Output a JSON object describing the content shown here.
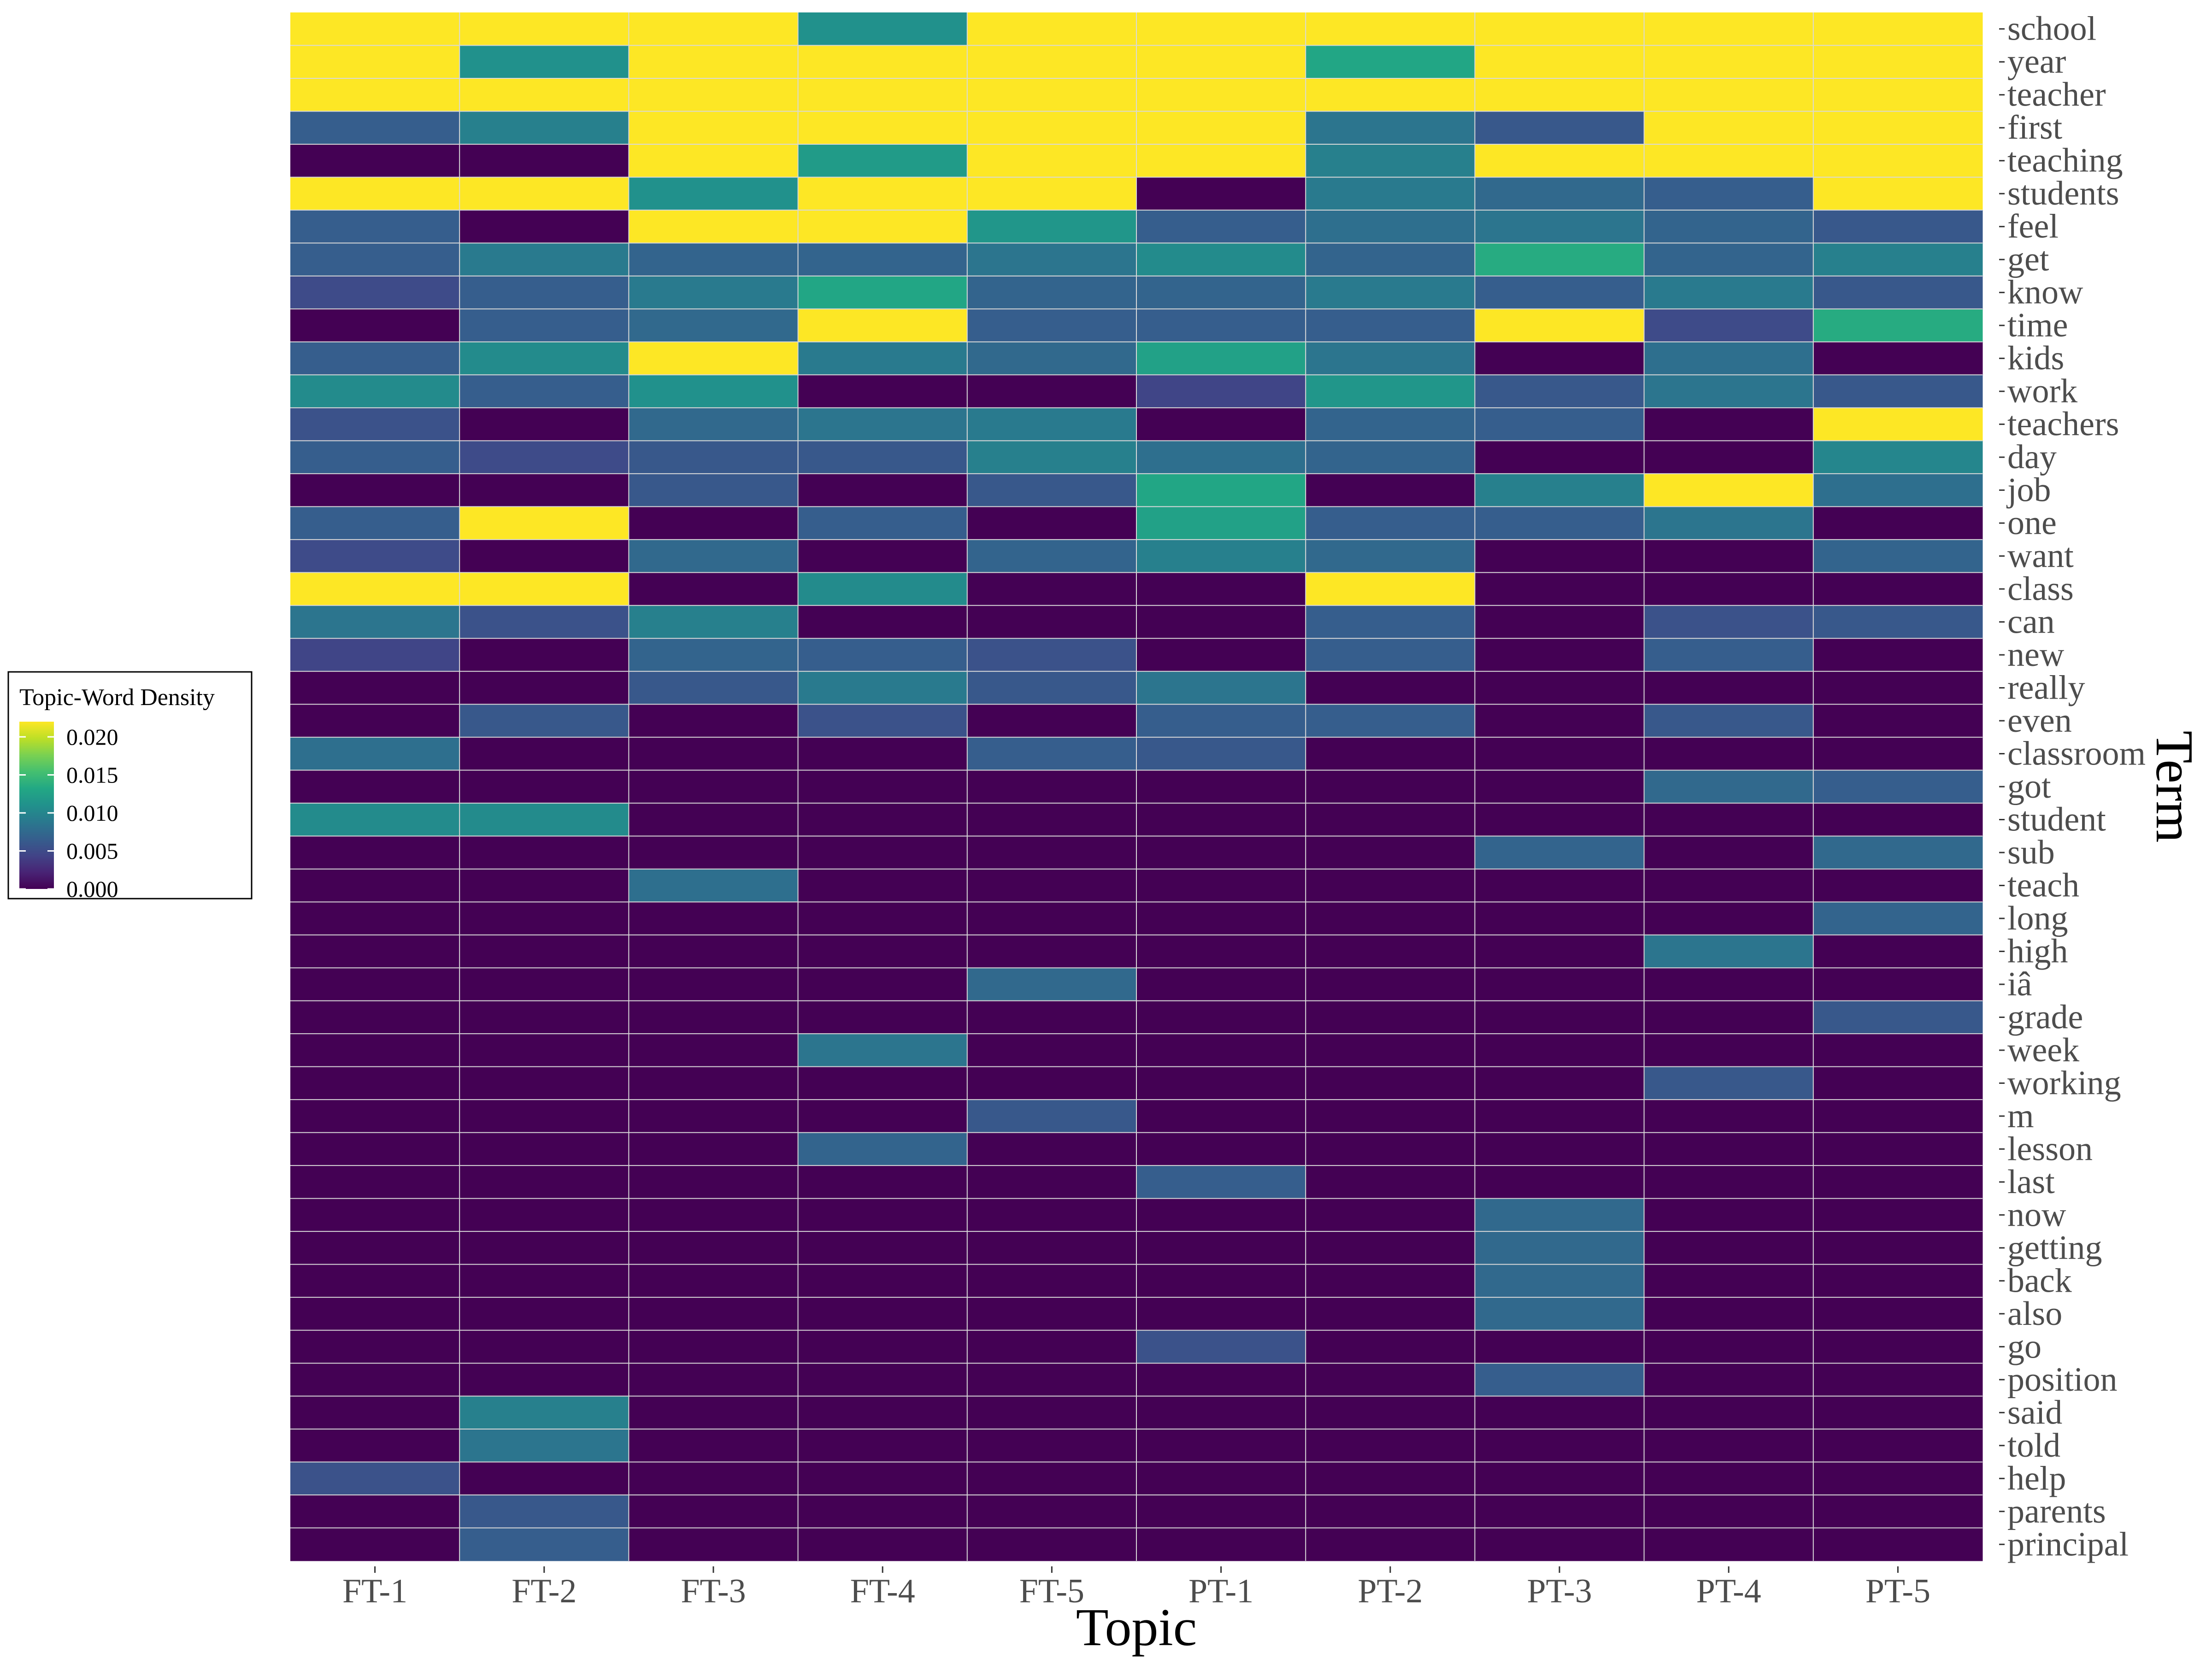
{
  "chart_data": {
    "type": "heatmap",
    "xlabel": "Topic",
    "ylabel": "Term",
    "grid": true,
    "legend_position": "left",
    "colormap": "viridis",
    "x_categories": [
      "FT-1",
      "FT-2",
      "FT-3",
      "FT-4",
      "FT-5",
      "PT-1",
      "PT-2",
      "PT-3",
      "PT-4",
      "PT-5"
    ],
    "y_categories": [
      "school",
      "year",
      "teacher",
      "first",
      "teaching",
      "students",
      "feel",
      "get",
      "know",
      "time",
      "kids",
      "work",
      "teachers",
      "day",
      "job",
      "one",
      "want",
      "class",
      "can",
      "new",
      "really",
      "even",
      "classroom",
      "got",
      "student",
      "sub",
      "teach",
      "long",
      "high",
      "iâ",
      "grade",
      "week",
      "working",
      "m",
      "lesson",
      "last",
      "now",
      "getting",
      "back",
      "also",
      "go",
      "position",
      "said",
      "told",
      "help",
      "parents",
      "principal"
    ],
    "values": [
      [
        0.022,
        0.022,
        0.022,
        0.011,
        0.022,
        0.022,
        0.022,
        0.022,
        0.022,
        0.022
      ],
      [
        0.022,
        0.011,
        0.022,
        0.022,
        0.022,
        0.022,
        0.013,
        0.022,
        0.022,
        0.022
      ],
      [
        0.022,
        0.022,
        0.022,
        0.022,
        0.022,
        0.022,
        0.022,
        0.022,
        0.022,
        0.022
      ],
      [
        0.0065,
        0.0095,
        0.022,
        0.022,
        0.022,
        0.022,
        0.0085,
        0.006,
        0.022,
        0.022
      ],
      [
        0.0,
        0.0,
        0.022,
        0.012,
        0.022,
        0.022,
        0.0095,
        0.022,
        0.022,
        0.022
      ],
      [
        0.022,
        0.022,
        0.011,
        0.022,
        0.022,
        0.0,
        0.009,
        0.0075,
        0.0065,
        0.022
      ],
      [
        0.0065,
        0.0,
        0.022,
        0.022,
        0.0115,
        0.0065,
        0.008,
        0.0085,
        0.007,
        0.006
      ],
      [
        0.0065,
        0.009,
        0.007,
        0.007,
        0.0085,
        0.0105,
        0.007,
        0.0135,
        0.007,
        0.0095
      ],
      [
        0.005,
        0.0065,
        0.009,
        0.013,
        0.007,
        0.007,
        0.009,
        0.0065,
        0.009,
        0.006
      ],
      [
        0.0,
        0.0065,
        0.0075,
        0.022,
        0.0065,
        0.0065,
        0.0065,
        0.022,
        0.005,
        0.0135
      ],
      [
        0.0065,
        0.0105,
        0.022,
        0.009,
        0.0075,
        0.0125,
        0.0085,
        0.0,
        0.008,
        0.0
      ],
      [
        0.0105,
        0.0065,
        0.011,
        0.0,
        0.0,
        0.0045,
        0.0115,
        0.006,
        0.0085,
        0.006
      ],
      [
        0.0055,
        0.0,
        0.0075,
        0.0085,
        0.009,
        0.0,
        0.007,
        0.0065,
        0.0,
        0.022
      ],
      [
        0.0065,
        0.005,
        0.006,
        0.006,
        0.0095,
        0.008,
        0.007,
        0.0,
        0.0,
        0.01
      ],
      [
        0.0,
        0.0,
        0.006,
        0.0,
        0.006,
        0.013,
        0.0,
        0.0095,
        0.022,
        0.008
      ],
      [
        0.0065,
        0.022,
        0.0,
        0.0065,
        0.0,
        0.0125,
        0.0065,
        0.0065,
        0.0085,
        0.0
      ],
      [
        0.005,
        0.0,
        0.0075,
        0.0,
        0.007,
        0.0095,
        0.0075,
        0.0,
        0.0,
        0.007
      ],
      [
        0.022,
        0.022,
        0.0,
        0.0105,
        0.0,
        0.0,
        0.022,
        0.0,
        0.0,
        0.0
      ],
      [
        0.0085,
        0.0055,
        0.0095,
        0.0,
        0.0,
        0.0,
        0.0065,
        0.0,
        0.0055,
        0.006
      ],
      [
        0.0045,
        0.0,
        0.007,
        0.0065,
        0.0055,
        0.0,
        0.0065,
        0.0,
        0.0065,
        0.0
      ],
      [
        0.0,
        0.0,
        0.006,
        0.009,
        0.006,
        0.0085,
        0.0,
        0.0,
        0.0,
        0.0
      ],
      [
        0.0,
        0.006,
        0.0,
        0.0055,
        0.0,
        0.0065,
        0.0065,
        0.0,
        0.006,
        0.0
      ],
      [
        0.008,
        0.0,
        0.0,
        0.0,
        0.0065,
        0.006,
        0.0,
        0.0,
        0.0,
        0.0
      ],
      [
        0.0,
        0.0,
        0.0,
        0.0,
        0.0,
        0.0,
        0.0,
        0.0,
        0.0075,
        0.0065
      ],
      [
        0.0105,
        0.0105,
        0.0,
        0.0,
        0.0,
        0.0,
        0.0,
        0.0,
        0.0,
        0.0
      ],
      [
        0.0,
        0.0,
        0.0,
        0.0,
        0.0,
        0.0,
        0.0,
        0.007,
        0.0,
        0.0075
      ],
      [
        0.0,
        0.0,
        0.008,
        0.0,
        0.0,
        0.0,
        0.0,
        0.0,
        0.0,
        0.0
      ],
      [
        0.0,
        0.0,
        0.0,
        0.0,
        0.0,
        0.0,
        0.0,
        0.0,
        0.0,
        0.007
      ],
      [
        0.0,
        0.0,
        0.0,
        0.0,
        0.0,
        0.0,
        0.0,
        0.0,
        0.0085,
        0.0
      ],
      [
        0.0,
        0.0,
        0.0,
        0.0,
        0.0075,
        0.0,
        0.0,
        0.0,
        0.0,
        0.0
      ],
      [
        0.0,
        0.0,
        0.0,
        0.0,
        0.0,
        0.0,
        0.0,
        0.0,
        0.0,
        0.006
      ],
      [
        0.0,
        0.0,
        0.0,
        0.0085,
        0.0,
        0.0,
        0.0,
        0.0,
        0.0,
        0.0
      ],
      [
        0.0,
        0.0,
        0.0,
        0.0,
        0.0,
        0.0,
        0.0,
        0.0,
        0.006,
        0.0
      ],
      [
        0.0,
        0.0,
        0.0,
        0.0,
        0.006,
        0.0,
        0.0,
        0.0,
        0.0,
        0.0
      ],
      [
        0.0,
        0.0,
        0.0,
        0.007,
        0.0,
        0.0,
        0.0,
        0.0,
        0.0,
        0.0
      ],
      [
        0.0,
        0.0,
        0.0,
        0.0,
        0.0,
        0.0065,
        0.0,
        0.0,
        0.0,
        0.0
      ],
      [
        0.0,
        0.0,
        0.0,
        0.0,
        0.0,
        0.0,
        0.0,
        0.0075,
        0.0,
        0.0
      ],
      [
        0.0,
        0.0,
        0.0,
        0.0,
        0.0,
        0.0,
        0.0,
        0.0075,
        0.0,
        0.0
      ],
      [
        0.0,
        0.0,
        0.0,
        0.0,
        0.0,
        0.0,
        0.0,
        0.0075,
        0.0,
        0.0
      ],
      [
        0.0,
        0.0,
        0.0,
        0.0,
        0.0,
        0.0,
        0.0,
        0.0075,
        0.0,
        0.0
      ],
      [
        0.0,
        0.0,
        0.0,
        0.0,
        0.0,
        0.0055,
        0.0,
        0.0,
        0.0,
        0.0
      ],
      [
        0.0,
        0.0,
        0.0,
        0.0,
        0.0,
        0.0,
        0.0,
        0.0065,
        0.0,
        0.0
      ],
      [
        0.0,
        0.0095,
        0.0,
        0.0,
        0.0,
        0.0,
        0.0,
        0.0,
        0.0,
        0.0
      ],
      [
        0.0,
        0.0085,
        0.0,
        0.0,
        0.0,
        0.0,
        0.0,
        0.0,
        0.0,
        0.0
      ],
      [
        0.0055,
        0.0,
        0.0,
        0.0,
        0.0,
        0.0,
        0.0,
        0.0,
        0.0,
        0.0
      ],
      [
        0.0,
        0.006,
        0.0,
        0.0,
        0.0,
        0.0,
        0.0,
        0.0,
        0.0,
        0.0
      ],
      [
        0.0,
        0.0065,
        0.0,
        0.0,
        0.0,
        0.0,
        0.0,
        0.0,
        0.0,
        0.0
      ]
    ],
    "color_range": [
      0.0,
      0.022
    ],
    "legend": {
      "title": "Topic-Word Density",
      "ticks": [
        0.0,
        0.005,
        0.01,
        0.015,
        0.02
      ],
      "tick_labels": [
        "0.000",
        "0.005",
        "0.010",
        "0.015",
        "0.020"
      ]
    }
  }
}
